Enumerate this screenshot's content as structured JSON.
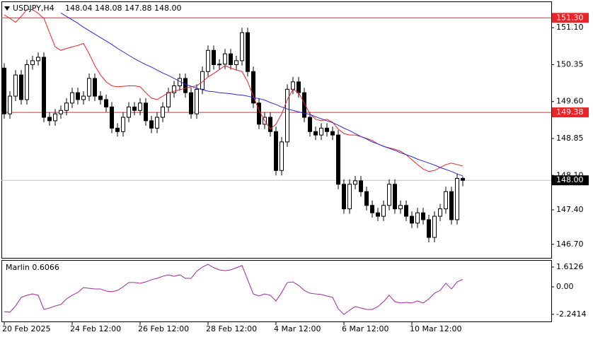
{
  "chart_data": [
    {
      "type": "candlestick",
      "title": "USDJPY,H4",
      "subtitle": "148.04 148.08 147.88 148.00",
      "categories": [
        "20 Feb 2025",
        null,
        null,
        null,
        null,
        null,
        null,
        null,
        null,
        null,
        null,
        null,
        "24 Feb 12:00",
        null,
        null,
        null,
        null,
        null,
        null,
        null,
        null,
        null,
        null,
        null,
        "26 Feb 12:00",
        null,
        null,
        null,
        null,
        null,
        null,
        null,
        null,
        null,
        null,
        null,
        "28 Feb 12:00",
        null,
        null,
        null,
        null,
        null,
        null,
        null,
        null,
        null,
        null,
        null,
        "4 Mar 12:00",
        null,
        null,
        null,
        null,
        null,
        null,
        null,
        null,
        null,
        null,
        null,
        "6 Mar 12:00",
        null,
        null,
        null,
        null,
        null,
        null,
        null,
        null,
        null,
        null,
        null,
        "10 Mar 12:00",
        null,
        null,
        null,
        null,
        null,
        null,
        null,
        null,
        null
      ],
      "open": [
        150.28,
        149.35,
        149.71,
        150.14,
        149.64,
        150.35,
        150.43,
        150.5,
        149.28,
        149.21,
        149.35,
        149.42,
        149.57,
        149.78,
        149.64,
        149.71,
        150.07,
        149.71,
        149.64,
        149.49,
        149.06,
        148.99,
        149.28,
        149.49,
        149.42,
        149.57,
        149.21,
        149.06,
        149.28,
        149.49,
        149.78,
        149.92,
        150.07,
        149.78,
        149.35,
        149.85,
        150.21,
        150.64,
        150.35,
        150.36,
        150.57,
        150.35,
        150.43,
        151.0,
        150.21,
        149.57,
        149.14,
        149.28,
        148.99,
        148.2,
        148.78,
        149.85,
        150.0,
        149.78,
        149.28,
        148.99,
        148.92,
        149.06,
        148.99,
        148.92,
        147.92,
        147.42,
        147.92,
        147.99,
        147.77,
        147.49,
        147.34,
        147.27,
        147.49,
        147.92,
        147.42,
        147.49,
        147.27,
        147.13,
        147.34,
        147.2,
        146.84,
        147.27,
        147.42,
        147.77,
        147.2,
        148.04
      ],
      "high": [
        150.38,
        149.81,
        150.24,
        150.24,
        150.45,
        150.53,
        150.6,
        150.6,
        149.38,
        149.45,
        149.52,
        149.67,
        149.88,
        149.88,
        149.81,
        150.17,
        150.17,
        149.81,
        149.74,
        149.59,
        149.16,
        149.38,
        149.59,
        149.59,
        149.67,
        149.67,
        149.31,
        149.38,
        149.59,
        149.88,
        150.02,
        150.17,
        150.17,
        149.88,
        149.95,
        150.31,
        150.74,
        150.74,
        150.46,
        150.67,
        150.67,
        150.53,
        151.1,
        151.1,
        150.31,
        149.67,
        149.38,
        149.38,
        149.09,
        148.88,
        149.95,
        150.1,
        150.1,
        149.88,
        149.38,
        149.09,
        149.16,
        149.16,
        149.09,
        149.02,
        148.02,
        148.02,
        148.09,
        148.09,
        147.87,
        147.59,
        147.44,
        147.59,
        148.02,
        148.02,
        147.59,
        147.59,
        147.37,
        147.44,
        147.44,
        147.3,
        147.37,
        147.52,
        147.87,
        147.87,
        148.14,
        148.08
      ],
      "low": [
        149.25,
        149.25,
        149.61,
        149.54,
        149.54,
        150.25,
        150.33,
        149.18,
        149.11,
        149.11,
        149.25,
        149.32,
        149.47,
        149.54,
        149.54,
        149.61,
        149.61,
        149.54,
        149.39,
        148.96,
        148.89,
        148.89,
        149.18,
        149.32,
        149.32,
        149.11,
        148.96,
        148.96,
        149.18,
        149.39,
        149.68,
        149.82,
        149.68,
        149.25,
        149.25,
        149.75,
        150.11,
        150.25,
        150.25,
        150.26,
        150.25,
        150.25,
        150.33,
        150.11,
        149.47,
        149.04,
        149.04,
        148.89,
        148.1,
        148.1,
        148.68,
        149.75,
        149.68,
        149.18,
        148.89,
        148.82,
        148.82,
        148.89,
        148.82,
        147.82,
        147.32,
        147.32,
        147.82,
        147.67,
        147.39,
        147.24,
        147.17,
        147.17,
        147.39,
        147.32,
        147.32,
        147.17,
        147.03,
        147.03,
        147.1,
        146.74,
        146.74,
        147.17,
        147.32,
        147.1,
        147.1,
        147.88
      ],
      "close": [
        149.35,
        149.71,
        150.14,
        149.64,
        150.35,
        150.43,
        150.5,
        149.28,
        149.21,
        149.35,
        149.42,
        149.57,
        149.78,
        149.64,
        149.71,
        150.07,
        149.71,
        149.64,
        149.49,
        149.06,
        148.99,
        149.28,
        149.49,
        149.42,
        149.57,
        149.21,
        149.06,
        149.28,
        149.49,
        149.78,
        149.92,
        150.07,
        149.78,
        149.35,
        149.85,
        150.21,
        150.64,
        150.35,
        150.36,
        150.57,
        150.35,
        150.43,
        151.0,
        150.21,
        149.57,
        149.14,
        149.28,
        148.99,
        148.2,
        148.78,
        149.85,
        150.0,
        149.78,
        149.28,
        148.99,
        148.92,
        149.06,
        148.99,
        148.92,
        147.92,
        147.42,
        147.92,
        147.99,
        147.77,
        147.49,
        147.34,
        147.27,
        147.49,
        147.92,
        147.42,
        147.49,
        147.27,
        147.13,
        147.34,
        147.2,
        146.84,
        147.27,
        147.42,
        147.77,
        147.2,
        148.04,
        148.0
      ],
      "up_color": "#ffffff",
      "down_color": "#000000",
      "edge_color": "#000000",
      "series": [
        {
          "color": "#e8262a",
          "values": [
            151.36,
            151.29,
            151.21,
            151.33,
            151.47,
            151.47,
            151.39,
            151.29,
            151.0,
            150.71,
            150.64,
            150.68,
            150.71,
            150.74,
            150.78,
            150.57,
            150.33,
            150.14,
            150.0,
            149.92,
            149.9,
            149.91,
            149.92,
            149.92,
            149.9,
            149.78,
            149.67,
            149.64,
            149.71,
            149.78,
            149.81,
            149.84,
            149.87,
            149.9,
            149.92,
            150.0,
            150.1,
            150.17,
            150.25,
            150.33,
            150.28,
            150.24,
            150.21,
            150.0,
            149.71,
            149.42,
            149.21,
            149.04,
            149.14,
            149.35,
            149.64,
            149.85,
            149.78,
            149.57,
            149.35,
            149.24,
            149.21,
            149.24,
            149.18,
            149.04,
            148.95,
            148.92,
            148.92,
            148.89,
            148.85,
            148.81,
            148.74,
            148.69,
            148.66,
            148.63,
            148.59,
            148.52,
            148.42,
            148.32,
            148.23,
            148.18,
            148.2,
            148.26,
            148.32,
            148.35,
            148.32,
            148.29
          ]
        },
        {
          "color": "#2b2bd6",
          "values": [
            null,
            null,
            null,
            null,
            null,
            null,
            null,
            null,
            null,
            null,
            151.4,
            151.33,
            151.26,
            151.19,
            151.11,
            151.04,
            150.97,
            150.9,
            150.83,
            150.76,
            150.68,
            150.61,
            150.54,
            150.47,
            150.41,
            150.35,
            150.3,
            150.24,
            150.18,
            150.13,
            150.07,
            150.01,
            149.95,
            149.91,
            149.87,
            149.84,
            149.81,
            149.8,
            149.78,
            149.77,
            149.76,
            149.74,
            149.73,
            149.71,
            149.68,
            149.66,
            149.63,
            149.58,
            149.54,
            149.49,
            149.45,
            149.42,
            149.39,
            149.36,
            149.34,
            149.29,
            149.25,
            149.21,
            149.17,
            149.12,
            149.06,
            149.01,
            148.95,
            148.89,
            148.84,
            148.78,
            148.74,
            148.69,
            148.65,
            148.61,
            148.56,
            148.52,
            148.48,
            148.43,
            148.39,
            148.35,
            148.31,
            148.26,
            148.22,
            148.18,
            148.13,
            148.09
          ]
        }
      ],
      "ylim": [
        146.41,
        151.62
      ],
      "yticks": [
        {
          "value": 151.1,
          "label": "151.10"
        },
        150.35,
        {
          "value": 149.6,
          "label": "149.60"
        },
        148.85,
        {
          "value": 148.1,
          "label": "148.10"
        },
        {
          "value": 147.4,
          "label": "147.40"
        },
        {
          "value": 146.7,
          "label": "146.70"
        }
      ],
      "levels": [
        {
          "value": 151.3,
          "label": "151.30",
          "color": "#e8262a"
        },
        {
          "value": 149.38,
          "label": "149.38",
          "color": "#e8262a"
        }
      ],
      "last_price": {
        "value": 148,
        "label": "148.00",
        "color": "#000000"
      }
    },
    {
      "type": "line",
      "title": "Marlin 0.6066",
      "color": "#9b2a9b",
      "values": [
        -2.02,
        -2.07,
        -1.56,
        -0.86,
        -0.69,
        -0.58,
        -0.69,
        -1.84,
        -1.73,
        -1.56,
        -1.44,
        -0.98,
        -0.69,
        -0.46,
        -0.06,
        -0.12,
        -0.17,
        -0.17,
        -0.35,
        -0.4,
        -0.29,
        0.0,
        0.35,
        0.35,
        0.29,
        0.4,
        0.58,
        0.69,
        0.86,
        0.98,
        0.86,
        0.98,
        0.69,
        0.69,
        1.27,
        1.61,
        1.84,
        1.56,
        1.38,
        1.32,
        1.38,
        1.56,
        1.73,
        0.58,
        -0.58,
        -0.75,
        -0.58,
        -0.69,
        -1.15,
        -0.46,
        0.35,
        0.4,
        0.12,
        -0.29,
        -0.52,
        -0.58,
        -0.63,
        -0.75,
        -0.86,
        -1.79,
        -2.25,
        -1.9,
        -1.61,
        -1.73,
        -1.84,
        -1.84,
        -1.61,
        -1.21,
        -0.69,
        -1.21,
        -1.32,
        -1.27,
        -1.32,
        -1.15,
        -1.32,
        -0.98,
        -0.52,
        -0.29,
        0.29,
        -0.17,
        0.4,
        0.6066
      ],
      "ylim": [
        -2.88,
        2.13
      ],
      "yticks": [
        1.6126,
        {
          "value": 0,
          "label": "0.00"
        },
        -2.2414
      ]
    }
  ]
}
